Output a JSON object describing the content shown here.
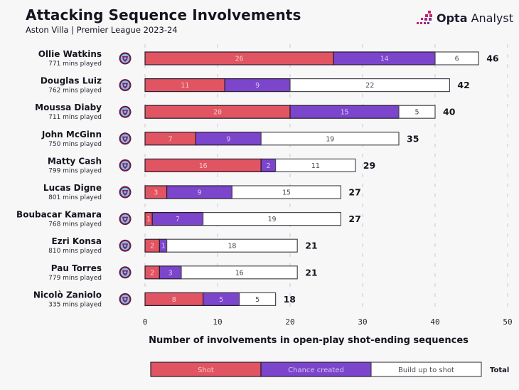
{
  "header": {
    "title": "Attacking Sequence Involvements",
    "subtitle": "Aston Villa | Premier League 2023-24",
    "brand_bold": "Opta",
    "brand_light": " Analyst"
  },
  "colors": {
    "shot": "#e05561",
    "chance": "#7b45cc",
    "buildup": "#ffffff",
    "shot_text": "#f9c8cc",
    "chance_text": "#d9c8f2",
    "buildup_text": "#4a4a52",
    "bar_border": "#2a1a2e",
    "badge": "#6b1d3f",
    "badge_inner": "#8db8e8"
  },
  "chart_data": {
    "type": "bar",
    "orientation": "horizontal",
    "stacked": true,
    "title": "Attacking Sequence Involvements",
    "subtitle": "Aston Villa | Premier League 2023-24",
    "xlabel": "Number of involvements in open-play shot-ending sequences",
    "ylabel": "",
    "xlim": [
      0,
      50
    ],
    "xticks": [
      0,
      10,
      20,
      30,
      40,
      50
    ],
    "grid": "vertical dashed",
    "legend": {
      "placement": "bottom",
      "entries": [
        "Shot",
        "Chance created",
        "Build up to shot"
      ],
      "total_label": "Total"
    },
    "categories": [
      "Ollie Watkins",
      "Douglas Luiz",
      "Moussa Diaby",
      "John McGinn",
      "Matty Cash",
      "Lucas Digne",
      "Boubacar Kamara",
      "Ezri Konsa",
      "Pau Torres",
      "Nicolò Zaniolo"
    ],
    "minutes_played": [
      "771 mins played",
      "762 mins played",
      "711 mins played",
      "750 mins played",
      "799 mins played",
      "801 mins played",
      "768 mins played",
      "810 mins played",
      "779 mins played",
      "335 mins played"
    ],
    "series": [
      {
        "name": "Shot",
        "values": [
          26,
          11,
          20,
          7,
          16,
          3,
          1,
          2,
          2,
          8
        ]
      },
      {
        "name": "Chance created",
        "values": [
          14,
          9,
          15,
          9,
          2,
          9,
          7,
          1,
          3,
          5
        ]
      },
      {
        "name": "Build up to shot",
        "values": [
          6,
          22,
          5,
          19,
          11,
          15,
          19,
          18,
          16,
          5
        ]
      }
    ],
    "totals": [
      46,
      42,
      40,
      35,
      29,
      27,
      27,
      21,
      21,
      18
    ]
  }
}
